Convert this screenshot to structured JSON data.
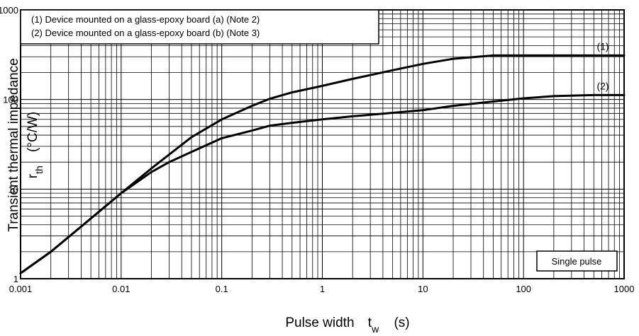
{
  "chart_data": {
    "type": "line",
    "title": "",
    "xlabel": "Pulse width",
    "xlabel_symbol": "t",
    "xlabel_symbol_sub": "w",
    "xlabel_unit": "(s)",
    "ylabel": "Transient thermal impedance",
    "ylabel_symbol": "r",
    "ylabel_symbol_sub": "th",
    "ylabel_unit": "(°C/W)",
    "xscale": "log",
    "yscale": "log",
    "xlim": [
      0.001,
      1000
    ],
    "ylim": [
      1,
      1000
    ],
    "x_ticks": [
      0.001,
      0.01,
      0.1,
      1,
      10,
      100,
      1000
    ],
    "x_tick_labels": [
      "0.001",
      "0.01",
      "0.1",
      "1",
      "10",
      "100",
      "1000"
    ],
    "y_ticks": [
      1,
      10,
      100,
      1000
    ],
    "y_tick_labels": [
      "1",
      "10",
      "100",
      "1000"
    ],
    "grid": true,
    "legend_position": "top-left",
    "legend_entries": [
      "(1) Device mounted on a glass-epoxy board (a) (Note 2)",
      "(2) Device mounted on a glass-epoxy board (b) (Note 3)"
    ],
    "annotation": "Single pulse",
    "annotation_position": "bottom-right",
    "series": [
      {
        "label": "(1)",
        "x": [
          0.001,
          0.002,
          0.005,
          0.01,
          0.02,
          0.05,
          0.1,
          0.2,
          0.3,
          0.5,
          1,
          2,
          5,
          10,
          20,
          50,
          100,
          200,
          500,
          1000
        ],
        "y": [
          1.15,
          2.0,
          4.7,
          9.0,
          17.0,
          38.0,
          60.0,
          85.0,
          102.0,
          120.0,
          142.0,
          170.0,
          212.0,
          250.0,
          285.0,
          310.0,
          310.0,
          310.0,
          310.0,
          310.0
        ]
      },
      {
        "label": "(2)",
        "x": [
          0.001,
          0.002,
          0.005,
          0.01,
          0.02,
          0.03,
          0.05,
          0.1,
          0.2,
          0.3,
          0.5,
          1,
          2,
          5,
          10,
          20,
          50,
          100,
          200,
          500,
          1000
        ],
        "y": [
          1.15,
          2.0,
          4.7,
          9.0,
          15.5,
          20.0,
          26.0,
          37.0,
          45.0,
          51.0,
          55.0,
          60.0,
          65.0,
          71.0,
          76.0,
          85.0,
          95.0,
          103.0,
          109.0,
          112.0,
          112.0
        ]
      }
    ]
  }
}
